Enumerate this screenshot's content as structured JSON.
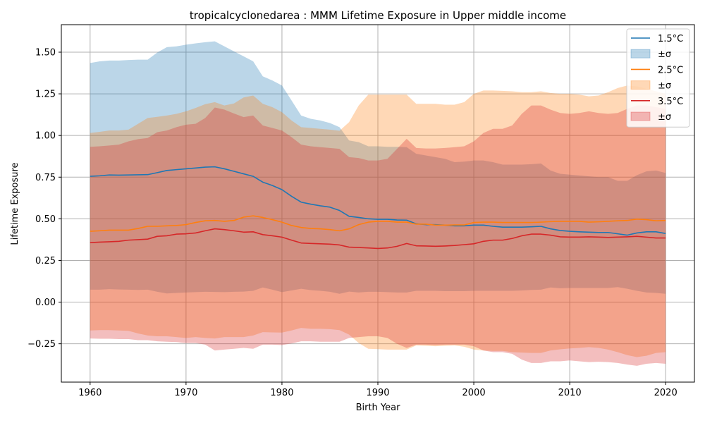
{
  "chart_data": {
    "type": "line",
    "title": "tropicalcyclonedarea : MMM Lifetime Exposure in Upper middle income",
    "xlabel": "Birth Year",
    "ylabel": "Lifetime Exposure",
    "xlim": [
      1957,
      2023
    ],
    "ylim": [
      -0.48,
      1.665
    ],
    "xticks": [
      1960,
      1970,
      1980,
      1990,
      2000,
      2010,
      2020
    ],
    "yticks": [
      -0.25,
      0.0,
      0.25,
      0.5,
      0.75,
      1.0,
      1.25,
      1.5
    ],
    "ytick_labels": [
      "−0.25",
      "0.00",
      "0.25",
      "0.50",
      "0.75",
      "1.00",
      "1.25",
      "1.50"
    ],
    "grid": true,
    "legend_position": "top-right",
    "x": [
      1960,
      1961,
      1962,
      1963,
      1964,
      1965,
      1966,
      1967,
      1968,
      1969,
      1970,
      1971,
      1972,
      1973,
      1974,
      1975,
      1976,
      1977,
      1978,
      1979,
      1980,
      1981,
      1982,
      1983,
      1984,
      1985,
      1986,
      1987,
      1988,
      1989,
      1990,
      1991,
      1992,
      1993,
      1994,
      1995,
      1996,
      1997,
      1998,
      1999,
      2000,
      2001,
      2002,
      2003,
      2004,
      2005,
      2006,
      2007,
      2008,
      2009,
      2010,
      2011,
      2012,
      2013,
      2014,
      2015,
      2016,
      2017,
      2018,
      2019,
      2020
    ],
    "series": [
      {
        "name": "1.5°C",
        "band_label": "±σ",
        "color": "#1f77b4",
        "mean": [
          0.755,
          0.758,
          0.763,
          0.762,
          0.763,
          0.764,
          0.765,
          0.777,
          0.79,
          0.795,
          0.8,
          0.805,
          0.81,
          0.812,
          0.8,
          0.785,
          0.77,
          0.755,
          0.72,
          0.7,
          0.675,
          0.635,
          0.6,
          0.588,
          0.578,
          0.57,
          0.55,
          0.515,
          0.508,
          0.5,
          0.497,
          0.497,
          0.493,
          0.492,
          0.47,
          0.465,
          0.465,
          0.462,
          0.458,
          0.458,
          0.462,
          0.462,
          0.455,
          0.45,
          0.45,
          0.45,
          0.452,
          0.455,
          0.44,
          0.43,
          0.425,
          0.422,
          0.42,
          0.418,
          0.418,
          0.41,
          0.402,
          0.415,
          0.422,
          0.422,
          0.412
        ],
        "upper": [
          1.435,
          1.445,
          1.45,
          1.45,
          1.453,
          1.455,
          1.455,
          1.498,
          1.53,
          1.535,
          1.545,
          1.553,
          1.56,
          1.565,
          1.535,
          1.505,
          1.475,
          1.445,
          1.355,
          1.33,
          1.3,
          1.21,
          1.12,
          1.1,
          1.09,
          1.075,
          1.05,
          0.97,
          0.96,
          0.935,
          0.935,
          0.932,
          0.932,
          0.93,
          0.89,
          0.88,
          0.87,
          0.86,
          0.84,
          0.843,
          0.85,
          0.85,
          0.84,
          0.825,
          0.825,
          0.825,
          0.828,
          0.832,
          0.79,
          0.77,
          0.765,
          0.76,
          0.755,
          0.75,
          0.75,
          0.728,
          0.728,
          0.762,
          0.785,
          0.79,
          0.775
        ],
        "lower": [
          0.075,
          0.075,
          0.078,
          0.076,
          0.075,
          0.073,
          0.075,
          0.062,
          0.052,
          0.055,
          0.058,
          0.06,
          0.062,
          0.061,
          0.06,
          0.062,
          0.063,
          0.068,
          0.088,
          0.075,
          0.06,
          0.07,
          0.08,
          0.072,
          0.068,
          0.062,
          0.05,
          0.063,
          0.058,
          0.062,
          0.062,
          0.06,
          0.058,
          0.058,
          0.068,
          0.068,
          0.068,
          0.066,
          0.066,
          0.066,
          0.068,
          0.068,
          0.068,
          0.068,
          0.068,
          0.07,
          0.073,
          0.075,
          0.088,
          0.083,
          0.085,
          0.085,
          0.085,
          0.085,
          0.085,
          0.09,
          0.08,
          0.068,
          0.058,
          0.055,
          0.05
        ]
      },
      {
        "name": "2.5°C",
        "band_label": "±σ",
        "color": "#ff7f0e",
        "mean": [
          0.425,
          0.428,
          0.432,
          0.432,
          0.432,
          0.442,
          0.455,
          0.455,
          0.458,
          0.46,
          0.465,
          0.478,
          0.488,
          0.49,
          0.485,
          0.49,
          0.51,
          0.518,
          0.508,
          0.495,
          0.48,
          0.46,
          0.448,
          0.442,
          0.44,
          0.435,
          0.428,
          0.44,
          0.465,
          0.48,
          0.485,
          0.485,
          0.48,
          0.48,
          0.468,
          0.468,
          0.462,
          0.462,
          0.463,
          0.463,
          0.478,
          0.48,
          0.48,
          0.478,
          0.478,
          0.478,
          0.478,
          0.48,
          0.483,
          0.485,
          0.485,
          0.485,
          0.48,
          0.482,
          0.485,
          0.488,
          0.49,
          0.498,
          0.495,
          0.488,
          0.49
        ],
        "upper": [
          1.015,
          1.022,
          1.03,
          1.03,
          1.035,
          1.07,
          1.105,
          1.112,
          1.12,
          1.13,
          1.145,
          1.165,
          1.188,
          1.2,
          1.18,
          1.192,
          1.228,
          1.24,
          1.19,
          1.17,
          1.14,
          1.09,
          1.05,
          1.045,
          1.04,
          1.035,
          1.028,
          1.08,
          1.18,
          1.245,
          1.245,
          1.245,
          1.245,
          1.245,
          1.19,
          1.19,
          1.19,
          1.185,
          1.185,
          1.2,
          1.25,
          1.27,
          1.27,
          1.268,
          1.265,
          1.26,
          1.26,
          1.265,
          1.255,
          1.25,
          1.25,
          1.245,
          1.235,
          1.24,
          1.26,
          1.285,
          1.3,
          1.295,
          1.28,
          1.265,
          1.25
        ],
        "lower": [
          -0.17,
          -0.168,
          -0.168,
          -0.17,
          -0.172,
          -0.188,
          -0.2,
          -0.205,
          -0.205,
          -0.21,
          -0.215,
          -0.21,
          -0.215,
          -0.218,
          -0.21,
          -0.21,
          -0.21,
          -0.2,
          -0.18,
          -0.182,
          -0.183,
          -0.17,
          -0.155,
          -0.16,
          -0.16,
          -0.162,
          -0.168,
          -0.195,
          -0.245,
          -0.28,
          -0.282,
          -0.285,
          -0.285,
          -0.285,
          -0.26,
          -0.262,
          -0.265,
          -0.262,
          -0.26,
          -0.268,
          -0.285,
          -0.29,
          -0.293,
          -0.293,
          -0.3,
          -0.303,
          -0.305,
          -0.305,
          -0.29,
          -0.283,
          -0.278,
          -0.275,
          -0.27,
          -0.275,
          -0.285,
          -0.3,
          -0.318,
          -0.33,
          -0.322,
          -0.305,
          -0.3
        ]
      },
      {
        "name": "3.5°C",
        "band_label": "±σ",
        "color": "#d62728",
        "mean": [
          0.357,
          0.36,
          0.362,
          0.365,
          0.372,
          0.375,
          0.378,
          0.395,
          0.398,
          0.408,
          0.41,
          0.415,
          0.428,
          0.44,
          0.435,
          0.428,
          0.42,
          0.422,
          0.405,
          0.398,
          0.39,
          0.372,
          0.355,
          0.352,
          0.35,
          0.348,
          0.343,
          0.33,
          0.328,
          0.325,
          0.322,
          0.325,
          0.335,
          0.352,
          0.338,
          0.337,
          0.335,
          0.337,
          0.34,
          0.345,
          0.35,
          0.365,
          0.372,
          0.372,
          0.382,
          0.398,
          0.408,
          0.408,
          0.402,
          0.392,
          0.39,
          0.39,
          0.392,
          0.39,
          0.388,
          0.39,
          0.392,
          0.395,
          0.39,
          0.385,
          0.385
        ],
        "upper": [
          0.932,
          0.935,
          0.94,
          0.945,
          0.965,
          0.978,
          0.985,
          1.02,
          1.03,
          1.05,
          1.065,
          1.07,
          1.105,
          1.168,
          1.155,
          1.132,
          1.11,
          1.12,
          1.06,
          1.045,
          1.03,
          0.99,
          0.945,
          0.935,
          0.93,
          0.925,
          0.92,
          0.87,
          0.865,
          0.85,
          0.85,
          0.86,
          0.92,
          0.98,
          0.925,
          0.922,
          0.922,
          0.925,
          0.93,
          0.935,
          0.965,
          1.015,
          1.04,
          1.04,
          1.06,
          1.13,
          1.18,
          1.18,
          1.155,
          1.135,
          1.13,
          1.135,
          1.145,
          1.135,
          1.13,
          1.135,
          1.16,
          1.18,
          1.18,
          1.17,
          1.16
        ],
        "lower": [
          -0.218,
          -0.22,
          -0.22,
          -0.222,
          -0.222,
          -0.228,
          -0.228,
          -0.235,
          -0.238,
          -0.24,
          -0.245,
          -0.245,
          -0.255,
          -0.29,
          -0.285,
          -0.28,
          -0.275,
          -0.28,
          -0.255,
          -0.255,
          -0.258,
          -0.248,
          -0.235,
          -0.235,
          -0.238,
          -0.238,
          -0.238,
          -0.215,
          -0.21,
          -0.205,
          -0.205,
          -0.215,
          -0.25,
          -0.275,
          -0.255,
          -0.255,
          -0.258,
          -0.255,
          -0.255,
          -0.255,
          -0.265,
          -0.29,
          -0.3,
          -0.3,
          -0.31,
          -0.345,
          -0.365,
          -0.365,
          -0.355,
          -0.355,
          -0.35,
          -0.355,
          -0.36,
          -0.358,
          -0.36,
          -0.365,
          -0.375,
          -0.382,
          -0.37,
          -0.365,
          -0.37
        ]
      }
    ]
  }
}
